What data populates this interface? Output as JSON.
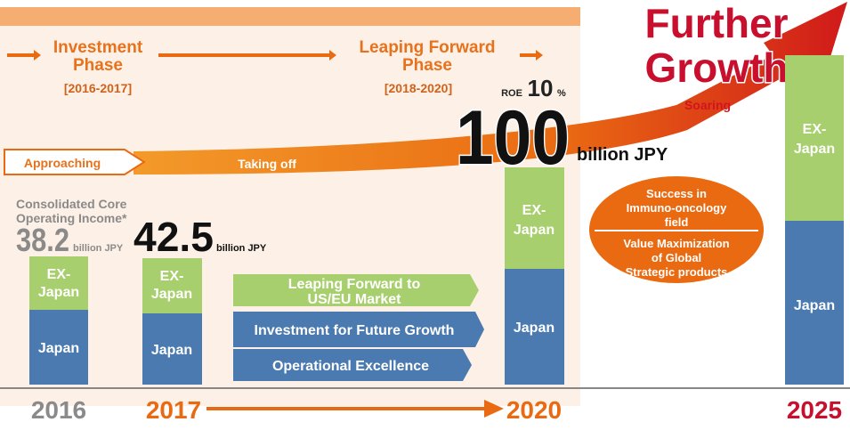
{
  "phases": [
    {
      "title": [
        "Investment",
        "Phase"
      ],
      "period": "[2016-2017]"
    },
    {
      "title": [
        "Leaping Forward",
        "Phase"
      ],
      "period": "[2018-2020]"
    }
  ],
  "goal": [
    "Further",
    "Growth"
  ],
  "trajectory": [
    "Approaching",
    "Taking off",
    "Soaring"
  ],
  "roe": {
    "label": "ROE",
    "value": 10,
    "unit": "%"
  },
  "target": {
    "value": 100,
    "unit": "billion JPY"
  },
  "income": {
    "caption": [
      "Consolidated Core",
      "Operating Income*"
    ],
    "figures": [
      {
        "value": 38.2,
        "unit": "billion JPY"
      },
      {
        "value": 42.5,
        "unit": "billion JPY"
      }
    ]
  },
  "bars": [
    {
      "year": "2016",
      "overseas": [
        "EX-",
        "Japan"
      ],
      "domestic": "Japan"
    },
    {
      "year": "2017",
      "overseas": [
        "EX-",
        "Japan"
      ],
      "domestic": "Japan"
    },
    {
      "year": "2020",
      "overseas": [
        "EX-",
        "Japan"
      ],
      "domestic": "Japan"
    },
    {
      "year": "2025",
      "overseas": [
        "EX-",
        "Japan"
      ],
      "domestic": "Japan"
    }
  ],
  "initiatives": [
    [
      "Leaping Forward to",
      "US/EU Market"
    ],
    [
      "Investment for Future Growth"
    ],
    [
      "Operational Excellence"
    ]
  ],
  "strategies": [
    [
      "Success in",
      "Immuno-oncology",
      "field"
    ],
    [
      "Value Maximization",
      "of Global",
      "Strategic products"
    ]
  ]
}
